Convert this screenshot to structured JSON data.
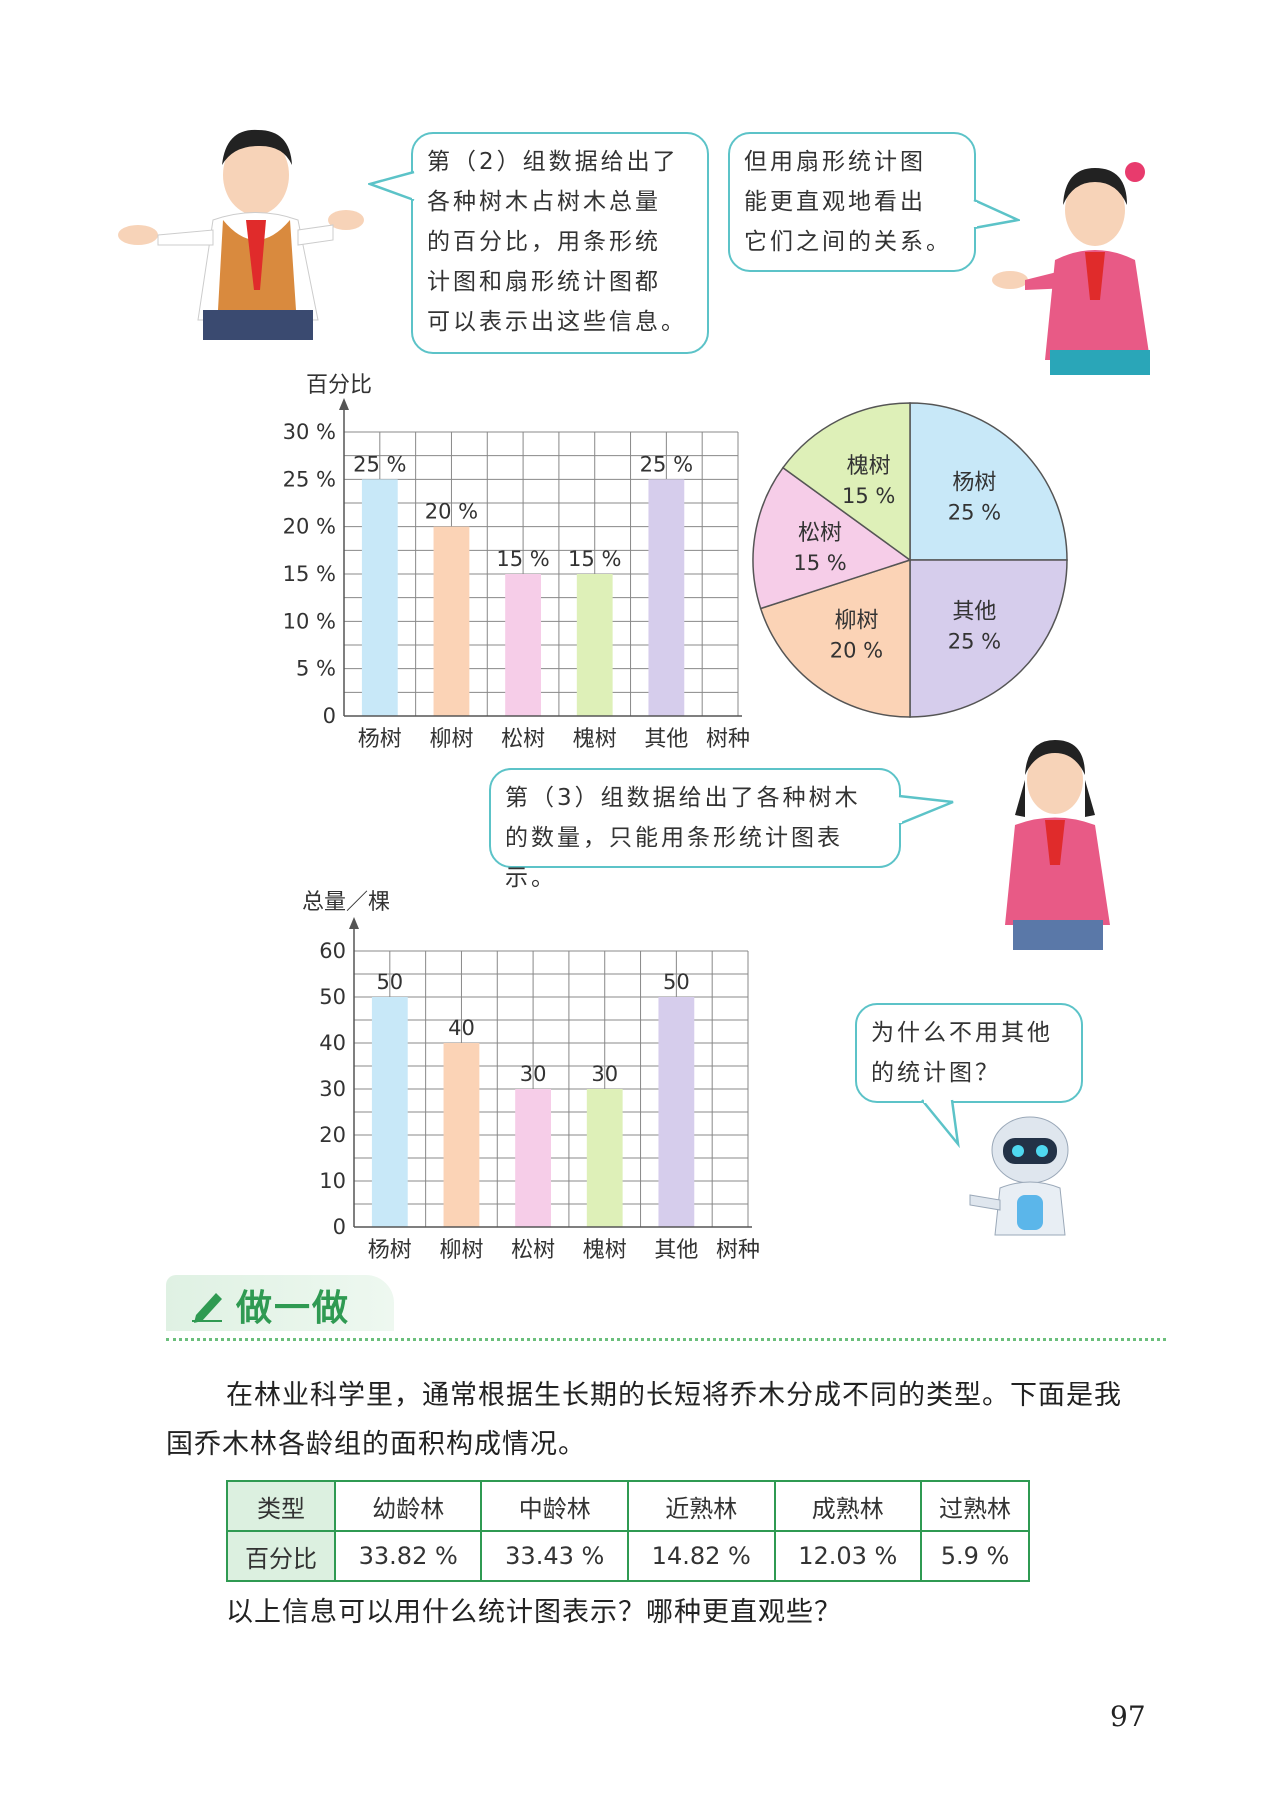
{
  "bubbles": {
    "boy": "第（2）组数据给出了\n各种树木占树木总量\n的百分比，用条形统\n计图和扇形统计图都\n可以表示出这些信息。",
    "girl_top": "但用扇形统计图\n能更直观地看出\n它们之间的关系。",
    "girl_mid": "第（3）组数据给出了各种树木\n的数量，只能用条形统计图表示。",
    "robot": "为什么不用其他\n的统计图？"
  },
  "chart_data": [
    {
      "type": "bar",
      "ylabel": "百分比",
      "xlabel": "树种",
      "categories": [
        "杨树",
        "柳树",
        "松树",
        "槐树",
        "其他"
      ],
      "values": [
        25,
        20,
        15,
        15,
        25
      ],
      "value_labels": [
        "25 %",
        "20 %",
        "15 %",
        "15 %",
        "25 %"
      ],
      "yticks": [
        "0",
        "5 %",
        "10 %",
        "15 %",
        "20 %",
        "25 %",
        "30 %"
      ],
      "ylim": [
        0,
        30
      ],
      "grid": true,
      "colors": [
        "#c8e8f8",
        "#fbd3b6",
        "#f6cde8",
        "#def0b8",
        "#d6cdec"
      ]
    },
    {
      "type": "pie",
      "slices": [
        {
          "label": "杨树",
          "value": 25,
          "value_label": "25 %",
          "color": "#c8e8f8"
        },
        {
          "label": "其他",
          "value": 25,
          "value_label": "25 %",
          "color": "#d6cdec"
        },
        {
          "label": "柳树",
          "value": 20,
          "value_label": "20 %",
          "color": "#fbd3b6"
        },
        {
          "label": "松树",
          "value": 15,
          "value_label": "15 %",
          "color": "#f6cde8"
        },
        {
          "label": "槐树",
          "value": 15,
          "value_label": "15 %",
          "color": "#def0b8"
        }
      ]
    },
    {
      "type": "bar",
      "ylabel": "总量／棵",
      "xlabel": "树种",
      "categories": [
        "杨树",
        "柳树",
        "松树",
        "槐树",
        "其他"
      ],
      "values": [
        50,
        40,
        30,
        30,
        50
      ],
      "value_labels": [
        "50",
        "40",
        "30",
        "30",
        "50"
      ],
      "yticks": [
        "0",
        "10",
        "20",
        "30",
        "40",
        "50",
        "60"
      ],
      "ylim": [
        0,
        60
      ],
      "grid": true,
      "colors": [
        "#c8e8f8",
        "#fbd3b6",
        "#f6cde8",
        "#def0b8",
        "#d6cdec"
      ]
    }
  ],
  "section_title": "做一做",
  "paragraph1_line1": "在林业科学里，通常根据生长期的长短将乔木分成不同的类型。下面是我",
  "paragraph1_line2": "国乔木林各龄组的面积构成情况。",
  "table": {
    "headers": [
      "类型",
      "幼龄林",
      "中龄林",
      "近熟林",
      "成熟林",
      "过熟林"
    ],
    "row": [
      "百分比",
      "33.82 %",
      "33.43 %",
      "14.82 %",
      "12.03 %",
      "5.9 %"
    ]
  },
  "question": "以上信息可以用什么统计图表示？哪种更直观些？",
  "page_number": "97"
}
